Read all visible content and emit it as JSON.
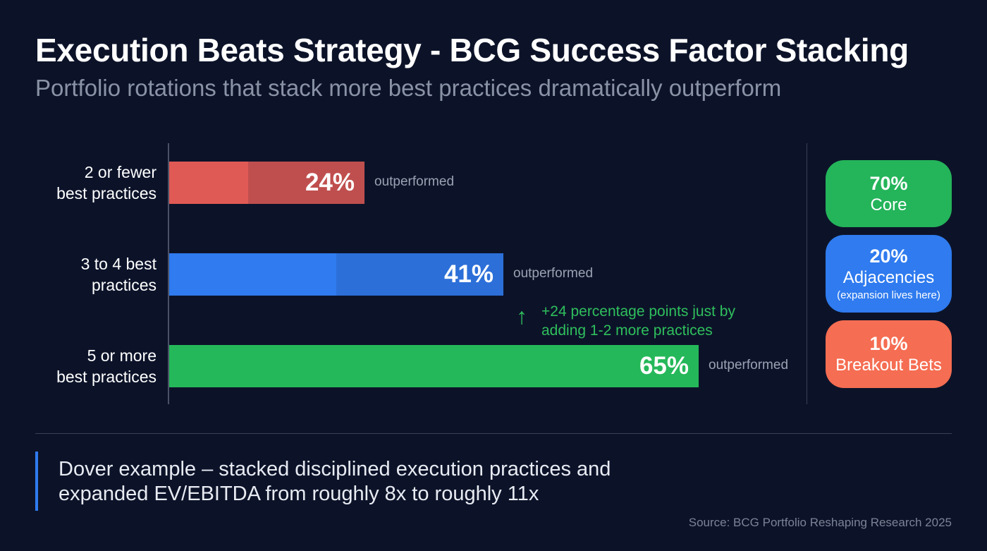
{
  "title": "Execution Beats Strategy - BCG Success Factor Stacking",
  "subtitle": "Portfolio rotations that stack more best practices dramatically outperform",
  "chart_data": {
    "type": "bar",
    "orientation": "horizontal",
    "categories": [
      "2 or fewer best practices",
      "3 to 4 best practices",
      "5 or more best practices"
    ],
    "category_lines": [
      [
        "2 or fewer",
        "best practices"
      ],
      [
        "3 to 4 best",
        "practices"
      ],
      [
        "5 or more",
        "best practices"
      ]
    ],
    "values": [
      24,
      41,
      65
    ],
    "value_labels": [
      "24%",
      "41%",
      "65%"
    ],
    "suffix_label": "outperformed",
    "colors": [
      "#e05a55",
      "#2f7bef",
      "#25b85a"
    ],
    "dark_colors": [
      "#bf4f4e",
      "#2c6fd8",
      "#25b85a"
    ],
    "annotation": {
      "lines": [
        "+24 percentage points just by",
        "adding 1-2 more practices"
      ],
      "arrow": "up-arrow-icon"
    },
    "xlim": [
      0,
      100
    ]
  },
  "allocation": [
    {
      "percent": "70%",
      "label": "Core",
      "color": "#24b45a"
    },
    {
      "percent": "20%",
      "label": "Adjacencies",
      "sub": "(expansion lives here)",
      "color": "#2f7bef"
    },
    {
      "percent": "10%",
      "label": "Breakout Bets",
      "color": "#f56d52"
    }
  ],
  "quote": [
    "Dover example – stacked disciplined execution practices and",
    "expanded EV/EBITDA from roughly 8x to roughly 11x"
  ],
  "source": "Source: BCG Portfolio Reshaping Research 2025"
}
